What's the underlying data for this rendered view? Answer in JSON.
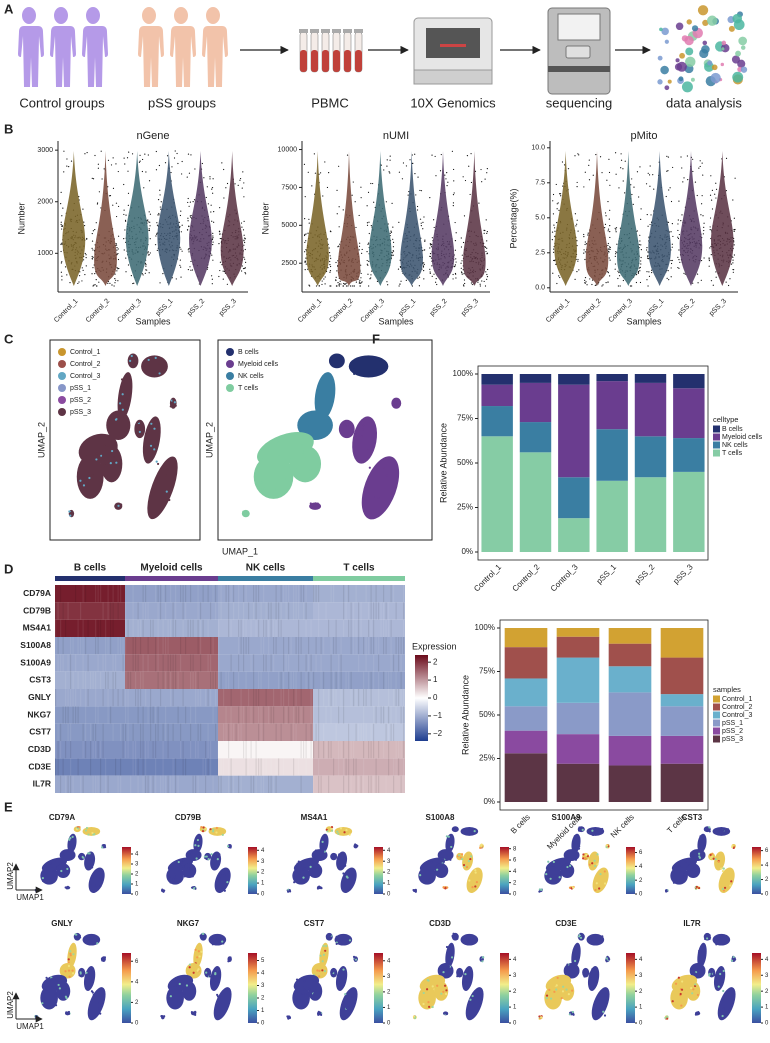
{
  "panel_labels": [
    "A",
    "B",
    "C",
    "D",
    "E",
    "F"
  ],
  "workflow": {
    "steps": [
      "Control groups",
      "pSS groups",
      "PBMC",
      "10X Genomics",
      "sequencing",
      "data analysis"
    ]
  },
  "chart_data": [
    {
      "type": "violin",
      "title": "nGene",
      "y_label": "Number",
      "x_label": "Samples",
      "categories": [
        "Control_1",
        "Control_2",
        "Control_3",
        "pSS_1",
        "pSS_2",
        "pSS_3"
      ],
      "values": [
        1250,
        870,
        1300,
        1300,
        1250,
        1050
      ],
      "colors": [
        "#7a6428",
        "#7a4a3c",
        "#3e6b74",
        "#3b5470",
        "#553a63",
        "#5b3444"
      ],
      "ylim": [
        250,
        3100
      ],
      "yticks": [
        1000,
        2000,
        3000
      ]
    },
    {
      "type": "violin",
      "title": "nUMI",
      "y_label": "Number",
      "x_label": "Samples",
      "categories": [
        "Control_1",
        "Control_2",
        "Control_3",
        "pSS_1",
        "pSS_2",
        "pSS_3"
      ],
      "values": [
        3000,
        2200,
        3200,
        2800,
        3000,
        2600
      ],
      "colors": [
        "#7a6428",
        "#7a4a3c",
        "#3e6b74",
        "#3b5470",
        "#553a63",
        "#5b3444"
      ],
      "ylim": [
        600,
        10300
      ],
      "yticks": [
        2500,
        5000,
        7500,
        10000
      ]
    },
    {
      "type": "violin",
      "title": "pMito",
      "y_label": "Percentage(%)",
      "x_label": "Samples",
      "categories": [
        "Control_1",
        "Control_2",
        "Control_3",
        "pSS_1",
        "pSS_2",
        "pSS_3"
      ],
      "values": [
        2.8,
        2.0,
        2.2,
        2.8,
        3.0,
        3.3
      ],
      "colors": [
        "#7a6428",
        "#7a4a3c",
        "#3e6b74",
        "#3b5470",
        "#553a63",
        "#5b3444"
      ],
      "ylim": [
        -0.3,
        10.2
      ],
      "yticks": [
        {
          "value": 0,
          "label": "0.0"
        },
        {
          "value": 2.5,
          "label": "2.5"
        },
        {
          "value": 5,
          "label": "5.0"
        },
        {
          "value": 7.5,
          "label": "7.5"
        },
        {
          "value": 10,
          "label": "10.0"
        }
      ]
    },
    {
      "type": "umap",
      "y_label": "UMAP_2",
      "series": [
        {
          "name": "Control_1",
          "color": "#c9962e"
        },
        {
          "name": "Control_2",
          "color": "#9c4f4a"
        },
        {
          "name": "Control_3",
          "color": "#62a7c4"
        },
        {
          "name": "pSS_1",
          "color": "#8796c8"
        },
        {
          "name": "pSS_2",
          "color": "#8b4ba0"
        },
        {
          "name": "pSS_3",
          "color": "#5e3445"
        }
      ]
    },
    {
      "type": "umap",
      "x_label": "UMAP_1",
      "y_label": "UMAP_2",
      "series": [
        {
          "name": "B cells",
          "color": "#23306e"
        },
        {
          "name": "Myeloid cells",
          "color": "#6a3d8f"
        },
        {
          "name": "NK cells",
          "color": "#3a7ea2"
        },
        {
          "name": "T cells",
          "color": "#7fcca0"
        }
      ]
    },
    {
      "type": "heatmap",
      "columns": [
        "B cells",
        "Myeloid cells",
        "NK cells",
        "T cells"
      ],
      "colors": [
        "#23306e",
        "#6a3d8f",
        "#3a7ea2",
        "#7fcca0"
      ],
      "rows": [
        "CD79A",
        "CD79B",
        "MS4A1",
        "S100A8",
        "S100A9",
        "CST3",
        "GNLY",
        "NKG7",
        "CST7",
        "CD3D",
        "CD3E",
        "IL7R"
      ],
      "matrix": [
        [
          2.2,
          -0.6,
          -0.5,
          -0.4
        ],
        [
          2.0,
          -0.5,
          -0.4,
          -0.3
        ],
        [
          2.2,
          -0.4,
          -0.3,
          -0.3
        ],
        [
          -0.6,
          1.6,
          -0.5,
          -0.5
        ],
        [
          -0.5,
          1.5,
          -0.5,
          -0.5
        ],
        [
          -0.4,
          1.4,
          -0.6,
          -0.6
        ],
        [
          -0.5,
          -0.5,
          1.5,
          -0.2
        ],
        [
          -0.7,
          -0.7,
          1.2,
          -0.2
        ],
        [
          -0.7,
          -0.7,
          1.1,
          -0.1
        ],
        [
          -0.8,
          -0.8,
          0.1,
          0.7
        ],
        [
          -1.0,
          -1.0,
          0.3,
          0.8
        ],
        [
          -0.5,
          -0.5,
          -0.4,
          0.6
        ]
      ],
      "colorbar": {
        "title": "Expression",
        "lim": [
          -2.4,
          2.4
        ],
        "ticks": [
          2,
          1,
          0,
          {
            "value": -1,
            "label": "−1"
          },
          {
            "value": -2,
            "label": "−2"
          }
        ]
      }
    },
    {
      "type": "feature",
      "title": "CD79A",
      "x_label": "UMAP1",
      "y_label": "UMAP2",
      "ylim": [
        0,
        4.7
      ],
      "yticks": [
        0,
        1,
        2,
        3,
        4
      ]
    },
    {
      "type": "feature",
      "title": "CD79B",
      "ylim": [
        0,
        4.3
      ],
      "yticks": [
        0,
        1,
        2,
        3,
        4
      ]
    },
    {
      "type": "feature",
      "title": "MS4A1",
      "ylim": [
        0,
        4.3
      ],
      "yticks": [
        0,
        1,
        2,
        3,
        4
      ]
    },
    {
      "type": "feature",
      "title": "S100A8",
      "ylim": [
        0,
        8.3
      ],
      "yticks": [
        0,
        2,
        4,
        6,
        8
      ]
    },
    {
      "type": "feature",
      "title": "S100A9",
      "ylim": [
        0,
        6.8
      ],
      "yticks": [
        0,
        2,
        4,
        6
      ]
    },
    {
      "type": "feature",
      "title": "CST3",
      "ylim": [
        0,
        6.5
      ],
      "yticks": [
        0,
        2,
        4,
        6
      ]
    },
    {
      "type": "feature",
      "title": "GNLY",
      "x_label": "UMAP1",
      "y_label": "UMAP2",
      "ylim": [
        0,
        6.8
      ],
      "yticks": [
        0,
        2,
        4,
        6
      ]
    },
    {
      "type": "feature",
      "title": "NKG7",
      "ylim": [
        0,
        5.6
      ],
      "yticks": [
        0,
        1,
        2,
        3,
        4,
        5
      ]
    },
    {
      "type": "feature",
      "title": "CST7",
      "ylim": [
        0,
        4.5
      ],
      "yticks": [
        0,
        1,
        2,
        3,
        4
      ]
    },
    {
      "type": "feature",
      "title": "CD3D",
      "ylim": [
        0,
        4.4
      ],
      "yticks": [
        0,
        1,
        2,
        3,
        4
      ]
    },
    {
      "type": "feature",
      "title": "CD3E",
      "ylim": [
        0,
        4.4
      ],
      "yticks": [
        0,
        1,
        2,
        3,
        4
      ]
    },
    {
      "type": "feature",
      "title": "IL7R",
      "ylim": [
        0,
        4.4
      ],
      "yticks": [
        0,
        1,
        2,
        3,
        4
      ]
    },
    {
      "type": "stacked_bar",
      "y_label": "Relative Abundance",
      "legend_title": "celltype",
      "categories": [
        "Control_1",
        "Control_2",
        "Control_3",
        "pSS_1",
        "pSS_2",
        "pSS_3"
      ],
      "series": [
        {
          "name": "B cells",
          "color": "#23306e",
          "values": [
            6,
            5,
            6,
            4,
            5,
            8
          ]
        },
        {
          "name": "Myeloid cells",
          "color": "#6a3d8f",
          "values": [
            12,
            22,
            52,
            27,
            30,
            28
          ]
        },
        {
          "name": "NK cells",
          "color": "#3a7ea2",
          "values": [
            17,
            17,
            23,
            29,
            23,
            19
          ]
        },
        {
          "name": "T cells",
          "color": "#86cca5",
          "values": [
            65,
            56,
            19,
            40,
            42,
            45
          ]
        }
      ],
      "ylim": [
        0,
        100
      ],
      "yticks": [
        {
          "value": 0,
          "label": "0%"
        },
        {
          "value": 25,
          "label": "25%"
        },
        {
          "value": 50,
          "label": "50%"
        },
        {
          "value": 75,
          "label": "75%"
        },
        {
          "value": 100,
          "label": "100%"
        }
      ]
    },
    {
      "type": "stacked_bar",
      "y_label": "Relative Abundance",
      "legend_title": "samples",
      "categories": [
        "B cells",
        "Myeloid cells",
        "NK cells",
        "T cells"
      ],
      "series": [
        {
          "name": "Control_1",
          "color": "#d2a232",
          "values": [
            11,
            5,
            9,
            17
          ]
        },
        {
          "name": "Control_2",
          "color": "#a0504c",
          "values": [
            18,
            12,
            13,
            21
          ]
        },
        {
          "name": "Control_3",
          "color": "#6ab0cc",
          "values": [
            16,
            26,
            15,
            7
          ]
        },
        {
          "name": "pSS_1",
          "color": "#8a9ac8",
          "values": [
            14,
            18,
            25,
            17
          ]
        },
        {
          "name": "pSS_2",
          "color": "#8a4aa0",
          "values": [
            13,
            17,
            17,
            16
          ]
        },
        {
          "name": "pSS_3",
          "color": "#5c3545",
          "values": [
            28,
            22,
            21,
            22
          ]
        }
      ],
      "ylim": [
        0,
        100
      ],
      "yticks": [
        {
          "value": 0,
          "label": "0%"
        },
        {
          "value": 25,
          "label": "25%"
        },
        {
          "value": 50,
          "label": "50%"
        },
        {
          "value": 75,
          "label": "75%"
        },
        {
          "value": 100,
          "label": "100%"
        }
      ]
    }
  ]
}
